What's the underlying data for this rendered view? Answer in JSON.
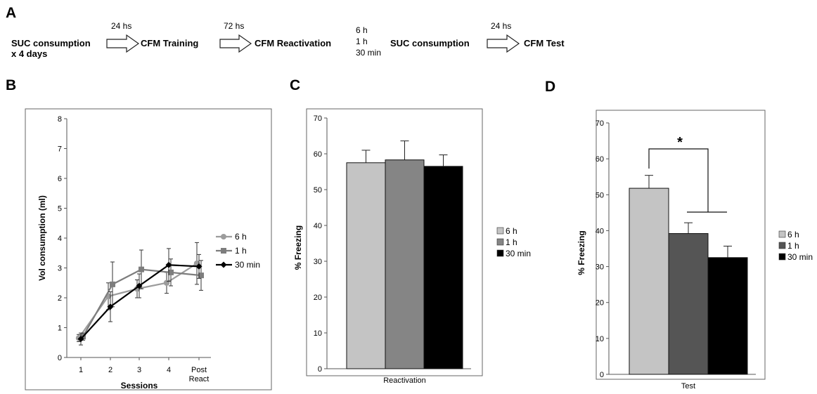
{
  "panel_letters": {
    "a": "A",
    "b": "B",
    "c": "C",
    "d": "D"
  },
  "protocol": {
    "step1_line1": "SUC consumption",
    "step1_line2": "x 4 days",
    "delay1": "24 hs",
    "step2": "CFM  Training",
    "delay2": "72 hs",
    "step3": "CFM  Reactivation",
    "delay3_options": [
      "6 h",
      "1 h",
      "30 min"
    ],
    "step4": "SUC consumption",
    "delay4": "24 hs",
    "step5": "CFM  Test"
  },
  "colors": {
    "light": "#c4c4c4",
    "mid": "#858585",
    "dark_gray": "#555555",
    "black": "#000000",
    "line_6h": "#9c9c9c",
    "line_1h": "#7d7d7d"
  },
  "chart_data": [
    {
      "id": "B",
      "type": "line",
      "xlabel": "Sessions",
      "ylabel": "Vol consumption (ml)",
      "categories": [
        "1",
        "2",
        "3",
        "4",
        "Post React"
      ],
      "ylim": [
        0,
        8
      ],
      "yticks": [
        "0",
        "1",
        "2",
        "3",
        "4",
        "5",
        "6",
        "7",
        "8"
      ],
      "series": [
        {
          "name": "6 h",
          "values": [
            0.65,
            2.05,
            2.3,
            2.5,
            3.15
          ],
          "errors": [
            0.12,
            0.45,
            0.3,
            0.35,
            0.7
          ],
          "color": "#9c9c9c",
          "marker": "circle"
        },
        {
          "name": "1 h",
          "values": [
            0.7,
            2.45,
            2.95,
            2.85,
            2.75
          ],
          "errors": [
            0.12,
            0.75,
            0.65,
            0.45,
            0.5
          ],
          "color": "#7d7d7d",
          "marker": "square"
        },
        {
          "name": "30 min",
          "values": [
            0.62,
            1.7,
            2.4,
            3.1,
            3.05
          ],
          "errors": [
            0.2,
            0.5,
            0.4,
            0.55,
            0.4
          ],
          "color": "#000000",
          "marker": "diamond"
        }
      ],
      "legend": "right",
      "grid": false
    },
    {
      "id": "C",
      "type": "bar",
      "xlabel": "Reactivation",
      "ylabel": "% Freezing",
      "ylim": [
        0,
        70
      ],
      "yticks": [
        "0",
        "10",
        "20",
        "30",
        "40",
        "50",
        "60",
        "70"
      ],
      "series": [
        {
          "name": "6 h",
          "values": [
            57.5
          ],
          "errors": [
            3.5
          ],
          "color": "#c4c4c4"
        },
        {
          "name": "1 h",
          "values": [
            58.3
          ],
          "errors": [
            5.3
          ],
          "color": "#858585"
        },
        {
          "name": "30 min",
          "values": [
            56.5
          ],
          "errors": [
            3.2
          ],
          "color": "#000000"
        }
      ],
      "legend": "right",
      "grid": false
    },
    {
      "id": "D",
      "type": "bar",
      "xlabel": "Test",
      "ylabel": "% Freezing",
      "ylim": [
        0,
        70
      ],
      "yticks": [
        "0",
        "10",
        "20",
        "30",
        "40",
        "50",
        "60",
        "70"
      ],
      "series": [
        {
          "name": "6 h",
          "values": [
            51.8
          ],
          "errors": [
            3.6
          ],
          "color": "#c4c4c4"
        },
        {
          "name": "1 h",
          "values": [
            39.2
          ],
          "errors": [
            3.0
          ],
          "color": "#555555"
        },
        {
          "name": "30 min",
          "values": [
            32.5
          ],
          "errors": [
            3.2
          ],
          "color": "#000000"
        }
      ],
      "annotations": [
        "*"
      ],
      "legend": "right",
      "grid": false
    }
  ]
}
